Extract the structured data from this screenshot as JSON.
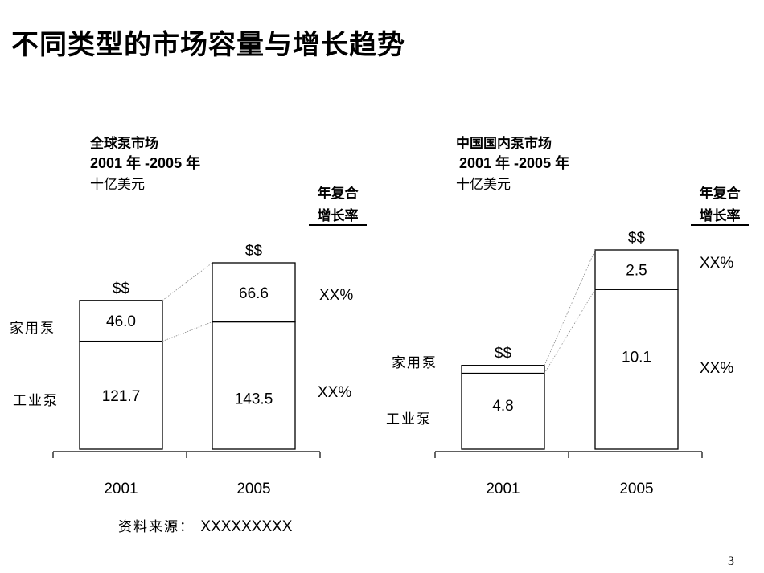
{
  "title": "不同类型的市场容量与增长趋势",
  "page_number": "3",
  "source": {
    "label": "资料来源：",
    "value": "XXXXXXXXX"
  },
  "segments": {
    "household": "家用泵",
    "industrial": "工业泵"
  },
  "cagr_header": {
    "line1": "年复合",
    "line2": "增长率"
  },
  "chart_data": [
    {
      "type": "bar",
      "stacked": true,
      "title": "全球泵市场",
      "period": "2001 年 -2005 年",
      "unit": "十亿美元",
      "categories": [
        "2001",
        "2005"
      ],
      "series": [
        {
          "name": "工业泵",
          "values": [
            121.7,
            143.5
          ],
          "labels": [
            "121.7",
            "143.5"
          ],
          "cagr": "XX%"
        },
        {
          "name": "家用泵",
          "values": [
            46.0,
            66.6
          ],
          "labels": [
            "46.0",
            "66.6"
          ],
          "cagr": "XX%"
        }
      ],
      "total_labels": [
        "$$",
        "$$"
      ]
    },
    {
      "type": "bar",
      "stacked": true,
      "title": "中国国内泵市场",
      "period": "2001 年 -2005 年",
      "unit": "十亿美元",
      "categories": [
        "2001",
        "2005"
      ],
      "series": [
        {
          "name": "工业泵",
          "values": [
            4.8,
            10.1
          ],
          "labels": [
            "4.8",
            "10.1"
          ],
          "cagr": "XX%"
        },
        {
          "name": "家用泵",
          "values": [
            0.5,
            2.5
          ],
          "labels": [
            "",
            "2.5"
          ],
          "cagr": "XX%"
        }
      ],
      "total_labels": [
        "$$",
        "$$"
      ]
    }
  ]
}
